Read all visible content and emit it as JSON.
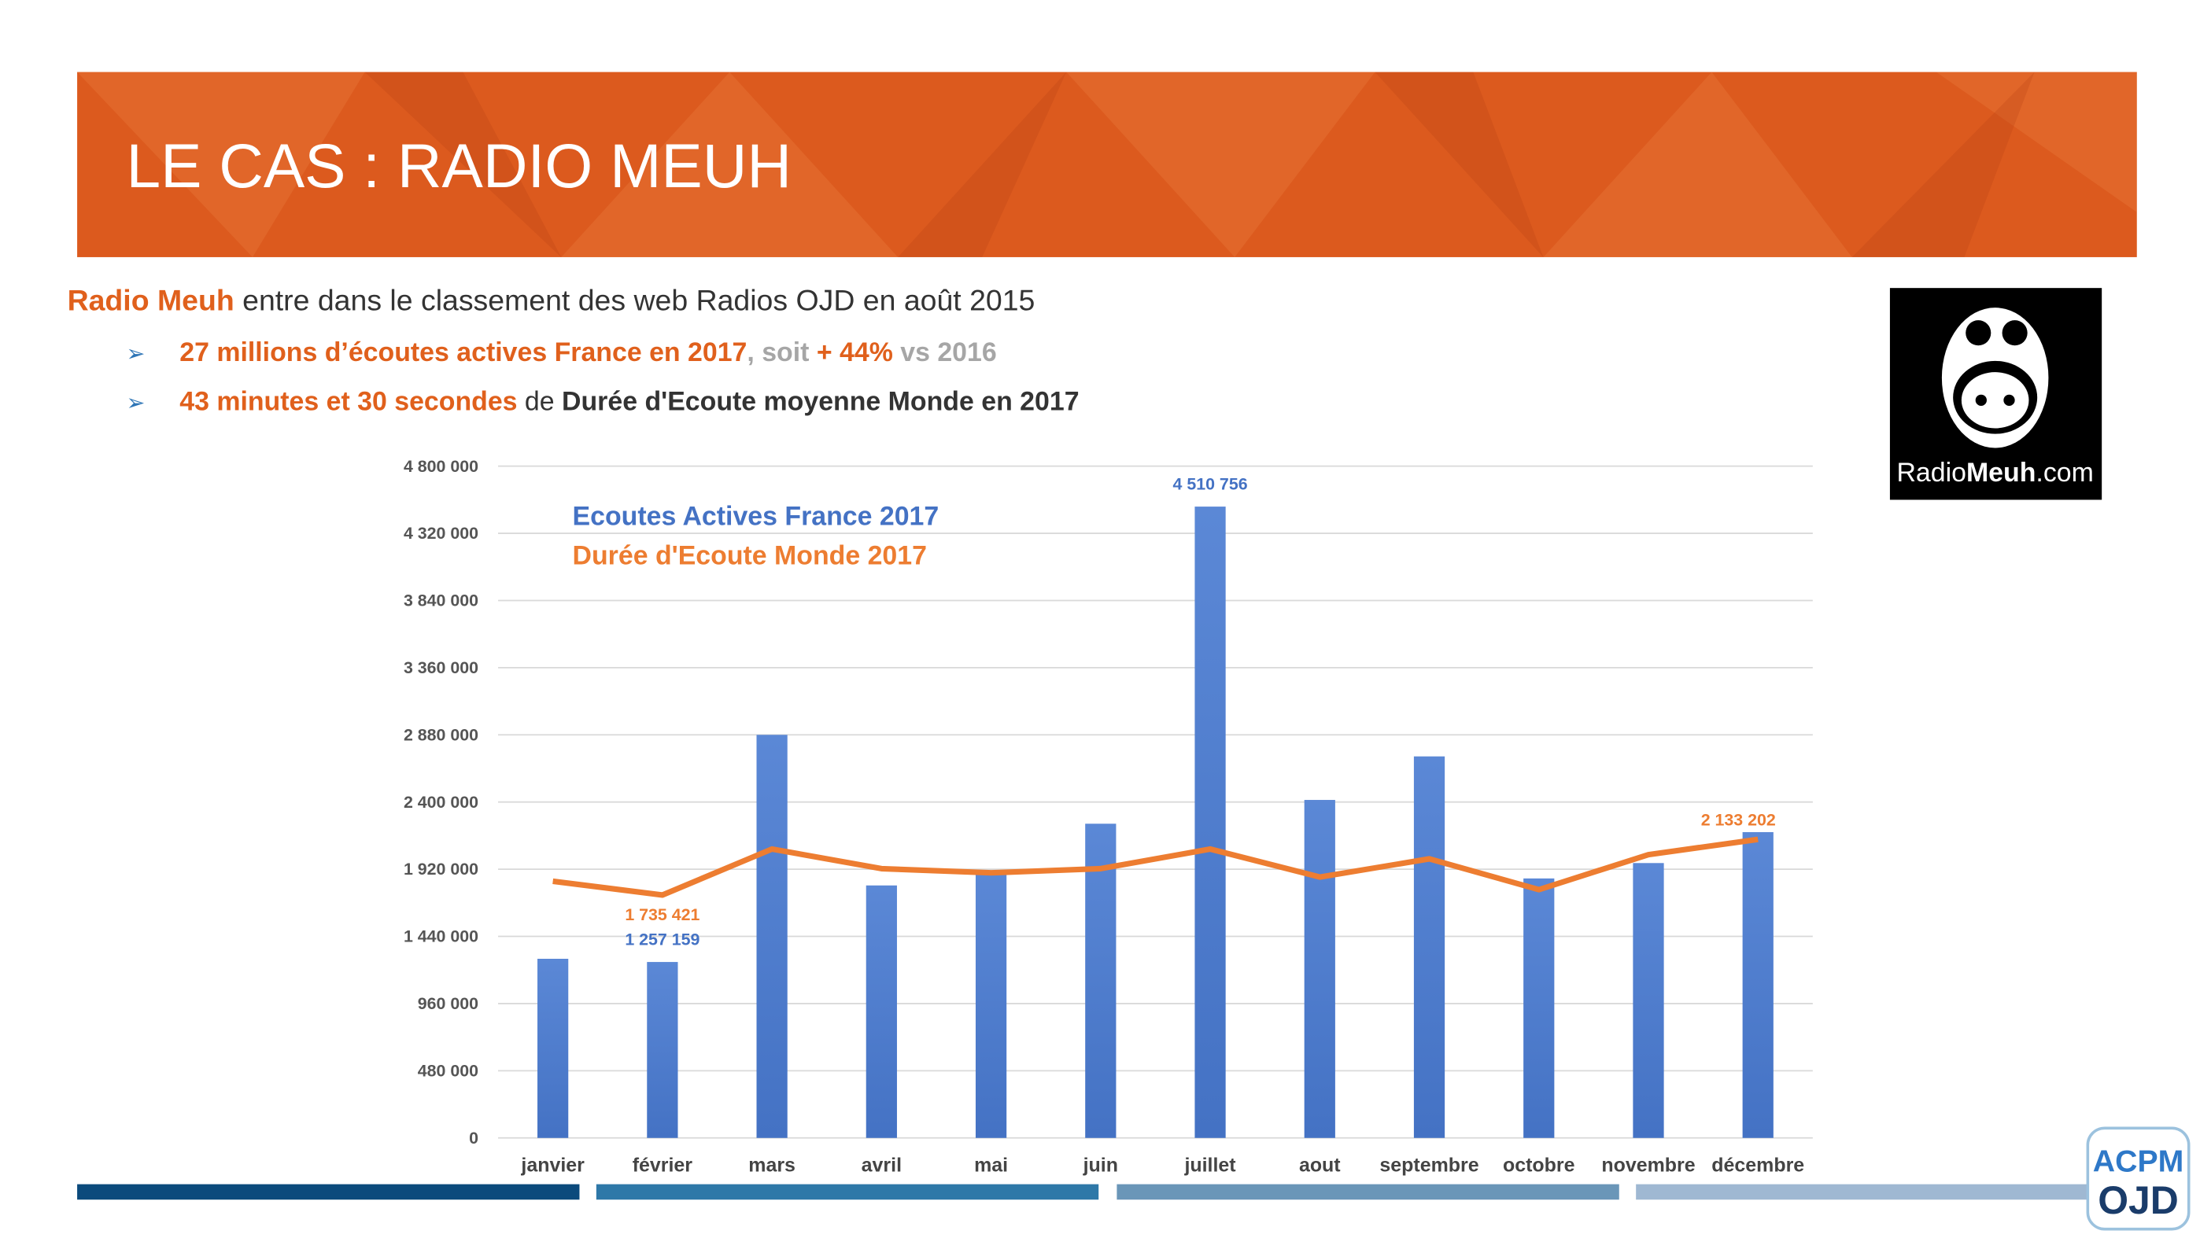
{
  "header": {
    "title": "LE CAS : RADIO MEUH"
  },
  "intro": [
    "Radio Meuh",
    " entre dans le classement des web Radios OJD en août 2015"
  ],
  "bullets": [
    [
      "27 millions d’écoutes actives France en 2017",
      ", soit ",
      "+ 44%",
      " vs 2016"
    ],
    [
      "43 minutes et 30 secondes",
      " de ",
      "Durée d'Ecoute moyenne Monde en 2017"
    ]
  ],
  "logos": {
    "radio": [
      "Radio",
      "Meuh",
      ".com"
    ],
    "acpm": [
      "ACPM",
      "OJD"
    ]
  },
  "chart_data": {
    "type": "bar",
    "categories": [
      "janvier",
      "février",
      "mars",
      "avril",
      "mai",
      "juin",
      "juillet",
      "aout",
      "septembre",
      "octobre",
      "novembre",
      "décembre"
    ],
    "series": [
      {
        "name": "Ecoutes Actives France 2017",
        "type": "bar",
        "color": "#4472c4",
        "values": [
          1280000,
          1257159,
          2880000,
          1804000,
          1894000,
          2245000,
          4510756,
          2415000,
          2726000,
          1854000,
          1964000,
          2185000
        ],
        "value_labels": [
          null,
          "1 257 159",
          null,
          null,
          null,
          null,
          "4 510 756",
          null,
          null,
          null,
          null,
          null
        ]
      },
      {
        "name": "Durée d'Ecoute Monde 2017",
        "type": "line",
        "color": "#ed7d31",
        "values": [
          1834000,
          1735421,
          2064000,
          1924000,
          1894000,
          1924000,
          2064000,
          1864000,
          1994000,
          1774000,
          2024000,
          2133202
        ],
        "value_labels": [
          null,
          "1 735 421",
          null,
          null,
          null,
          null,
          null,
          null,
          null,
          null,
          null,
          "2 133 202"
        ]
      }
    ],
    "ylim": [
      0,
      4800000
    ],
    "yticks": [
      0,
      {
        "value": 480000,
        "label": "480 000"
      },
      {
        "value": 960000,
        "label": "960 000"
      },
      {
        "value": 1440000,
        "label": "1 440 000"
      },
      {
        "value": 1920000,
        "label": "1 920 000"
      },
      {
        "value": 2400000,
        "label": "2 400 000"
      },
      {
        "value": 2880000,
        "label": "2 880 000"
      },
      {
        "value": 3360000,
        "label": "3 360 000"
      },
      {
        "value": 3840000,
        "label": "3 840 000"
      },
      {
        "value": 4320000,
        "label": "4 320 000"
      },
      {
        "value": 4800000,
        "label": "4 800 000"
      }
    ],
    "grid": true
  }
}
